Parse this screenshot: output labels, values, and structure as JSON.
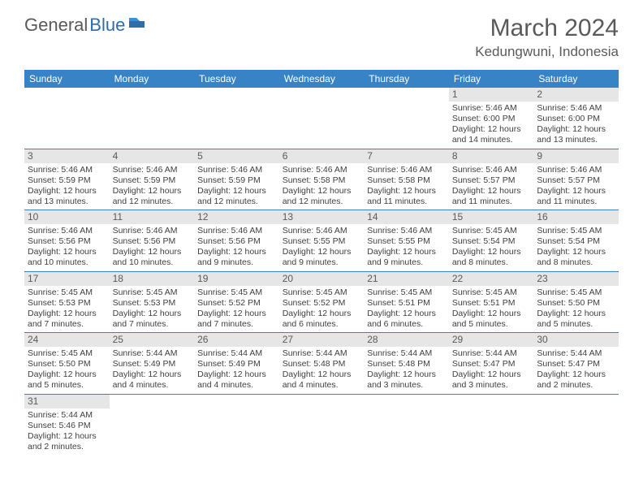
{
  "logo": {
    "general": "General",
    "blue": "Blue"
  },
  "title": "March 2024",
  "location": "Kedungwuni, Indonesia",
  "colors": {
    "header_bg": "#3883c6",
    "header_text": "#ffffff",
    "daynum_bg": "#e6e6e6",
    "text": "#404040",
    "title_text": "#5a5a5a",
    "row_border": "#3883c6"
  },
  "weekdays": [
    "Sunday",
    "Monday",
    "Tuesday",
    "Wednesday",
    "Thursday",
    "Friday",
    "Saturday"
  ],
  "weeks": [
    [
      {
        "num": "",
        "sunrise": "",
        "sunset": "",
        "daylight": ""
      },
      {
        "num": "",
        "sunrise": "",
        "sunset": "",
        "daylight": ""
      },
      {
        "num": "",
        "sunrise": "",
        "sunset": "",
        "daylight": ""
      },
      {
        "num": "",
        "sunrise": "",
        "sunset": "",
        "daylight": ""
      },
      {
        "num": "",
        "sunrise": "",
        "sunset": "",
        "daylight": ""
      },
      {
        "num": "1",
        "sunrise": "Sunrise: 5:46 AM",
        "sunset": "Sunset: 6:00 PM",
        "daylight": "Daylight: 12 hours and 14 minutes."
      },
      {
        "num": "2",
        "sunrise": "Sunrise: 5:46 AM",
        "sunset": "Sunset: 6:00 PM",
        "daylight": "Daylight: 12 hours and 13 minutes."
      }
    ],
    [
      {
        "num": "3",
        "sunrise": "Sunrise: 5:46 AM",
        "sunset": "Sunset: 5:59 PM",
        "daylight": "Daylight: 12 hours and 13 minutes."
      },
      {
        "num": "4",
        "sunrise": "Sunrise: 5:46 AM",
        "sunset": "Sunset: 5:59 PM",
        "daylight": "Daylight: 12 hours and 12 minutes."
      },
      {
        "num": "5",
        "sunrise": "Sunrise: 5:46 AM",
        "sunset": "Sunset: 5:59 PM",
        "daylight": "Daylight: 12 hours and 12 minutes."
      },
      {
        "num": "6",
        "sunrise": "Sunrise: 5:46 AM",
        "sunset": "Sunset: 5:58 PM",
        "daylight": "Daylight: 12 hours and 12 minutes."
      },
      {
        "num": "7",
        "sunrise": "Sunrise: 5:46 AM",
        "sunset": "Sunset: 5:58 PM",
        "daylight": "Daylight: 12 hours and 11 minutes."
      },
      {
        "num": "8",
        "sunrise": "Sunrise: 5:46 AM",
        "sunset": "Sunset: 5:57 PM",
        "daylight": "Daylight: 12 hours and 11 minutes."
      },
      {
        "num": "9",
        "sunrise": "Sunrise: 5:46 AM",
        "sunset": "Sunset: 5:57 PM",
        "daylight": "Daylight: 12 hours and 11 minutes."
      }
    ],
    [
      {
        "num": "10",
        "sunrise": "Sunrise: 5:46 AM",
        "sunset": "Sunset: 5:56 PM",
        "daylight": "Daylight: 12 hours and 10 minutes."
      },
      {
        "num": "11",
        "sunrise": "Sunrise: 5:46 AM",
        "sunset": "Sunset: 5:56 PM",
        "daylight": "Daylight: 12 hours and 10 minutes."
      },
      {
        "num": "12",
        "sunrise": "Sunrise: 5:46 AM",
        "sunset": "Sunset: 5:56 PM",
        "daylight": "Daylight: 12 hours and 9 minutes."
      },
      {
        "num": "13",
        "sunrise": "Sunrise: 5:46 AM",
        "sunset": "Sunset: 5:55 PM",
        "daylight": "Daylight: 12 hours and 9 minutes."
      },
      {
        "num": "14",
        "sunrise": "Sunrise: 5:46 AM",
        "sunset": "Sunset: 5:55 PM",
        "daylight": "Daylight: 12 hours and 9 minutes."
      },
      {
        "num": "15",
        "sunrise": "Sunrise: 5:45 AM",
        "sunset": "Sunset: 5:54 PM",
        "daylight": "Daylight: 12 hours and 8 minutes."
      },
      {
        "num": "16",
        "sunrise": "Sunrise: 5:45 AM",
        "sunset": "Sunset: 5:54 PM",
        "daylight": "Daylight: 12 hours and 8 minutes."
      }
    ],
    [
      {
        "num": "17",
        "sunrise": "Sunrise: 5:45 AM",
        "sunset": "Sunset: 5:53 PM",
        "daylight": "Daylight: 12 hours and 7 minutes."
      },
      {
        "num": "18",
        "sunrise": "Sunrise: 5:45 AM",
        "sunset": "Sunset: 5:53 PM",
        "daylight": "Daylight: 12 hours and 7 minutes."
      },
      {
        "num": "19",
        "sunrise": "Sunrise: 5:45 AM",
        "sunset": "Sunset: 5:52 PM",
        "daylight": "Daylight: 12 hours and 7 minutes."
      },
      {
        "num": "20",
        "sunrise": "Sunrise: 5:45 AM",
        "sunset": "Sunset: 5:52 PM",
        "daylight": "Daylight: 12 hours and 6 minutes."
      },
      {
        "num": "21",
        "sunrise": "Sunrise: 5:45 AM",
        "sunset": "Sunset: 5:51 PM",
        "daylight": "Daylight: 12 hours and 6 minutes."
      },
      {
        "num": "22",
        "sunrise": "Sunrise: 5:45 AM",
        "sunset": "Sunset: 5:51 PM",
        "daylight": "Daylight: 12 hours and 5 minutes."
      },
      {
        "num": "23",
        "sunrise": "Sunrise: 5:45 AM",
        "sunset": "Sunset: 5:50 PM",
        "daylight": "Daylight: 12 hours and 5 minutes."
      }
    ],
    [
      {
        "num": "24",
        "sunrise": "Sunrise: 5:45 AM",
        "sunset": "Sunset: 5:50 PM",
        "daylight": "Daylight: 12 hours and 5 minutes."
      },
      {
        "num": "25",
        "sunrise": "Sunrise: 5:44 AM",
        "sunset": "Sunset: 5:49 PM",
        "daylight": "Daylight: 12 hours and 4 minutes."
      },
      {
        "num": "26",
        "sunrise": "Sunrise: 5:44 AM",
        "sunset": "Sunset: 5:49 PM",
        "daylight": "Daylight: 12 hours and 4 minutes."
      },
      {
        "num": "27",
        "sunrise": "Sunrise: 5:44 AM",
        "sunset": "Sunset: 5:48 PM",
        "daylight": "Daylight: 12 hours and 4 minutes."
      },
      {
        "num": "28",
        "sunrise": "Sunrise: 5:44 AM",
        "sunset": "Sunset: 5:48 PM",
        "daylight": "Daylight: 12 hours and 3 minutes."
      },
      {
        "num": "29",
        "sunrise": "Sunrise: 5:44 AM",
        "sunset": "Sunset: 5:47 PM",
        "daylight": "Daylight: 12 hours and 3 minutes."
      },
      {
        "num": "30",
        "sunrise": "Sunrise: 5:44 AM",
        "sunset": "Sunset: 5:47 PM",
        "daylight": "Daylight: 12 hours and 2 minutes."
      }
    ],
    [
      {
        "num": "31",
        "sunrise": "Sunrise: 5:44 AM",
        "sunset": "Sunset: 5:46 PM",
        "daylight": "Daylight: 12 hours and 2 minutes."
      },
      {
        "num": "",
        "sunrise": "",
        "sunset": "",
        "daylight": ""
      },
      {
        "num": "",
        "sunrise": "",
        "sunset": "",
        "daylight": ""
      },
      {
        "num": "",
        "sunrise": "",
        "sunset": "",
        "daylight": ""
      },
      {
        "num": "",
        "sunrise": "",
        "sunset": "",
        "daylight": ""
      },
      {
        "num": "",
        "sunrise": "",
        "sunset": "",
        "daylight": ""
      },
      {
        "num": "",
        "sunrise": "",
        "sunset": "",
        "daylight": ""
      }
    ]
  ]
}
